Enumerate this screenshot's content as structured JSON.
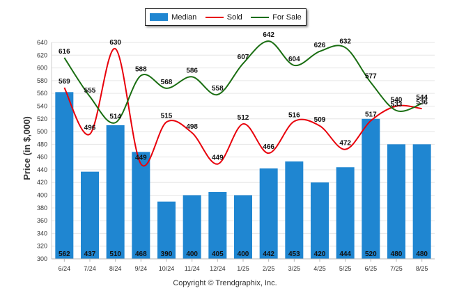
{
  "chart_data": {
    "type": "bar",
    "categories": [
      "6/24",
      "7/24",
      "8/24",
      "9/24",
      "10/24",
      "11/24",
      "12/24",
      "1/25",
      "2/25",
      "3/25",
      "4/25",
      "5/25",
      "6/25",
      "7/25",
      "8/25"
    ],
    "series": [
      {
        "name": "Median",
        "type": "bar",
        "color": "#1f86d1",
        "values": [
          562,
          437,
          510,
          468,
          390,
          400,
          405,
          400,
          442,
          453,
          420,
          444,
          520,
          480,
          480
        ]
      },
      {
        "name": "Sold",
        "type": "line",
        "color": "#e8000b",
        "values": [
          569,
          496,
          630,
          449,
          515,
          498,
          449,
          512,
          466,
          516,
          509,
          472,
          517,
          540,
          536
        ]
      },
      {
        "name": "For Sale",
        "type": "line",
        "color": "#1a6e12",
        "values": [
          616,
          555,
          514,
          588,
          568,
          586,
          558,
          607,
          642,
          604,
          626,
          632,
          577,
          533,
          544
        ]
      }
    ],
    "ylabel": "Price (in $,000)",
    "xlabel": "",
    "ylim": [
      300,
      640
    ],
    "yticks": [
      300,
      320,
      340,
      360,
      380,
      400,
      420,
      440,
      460,
      480,
      500,
      520,
      540,
      560,
      580,
      600,
      620,
      640
    ],
    "grid": true,
    "legend": "top-center"
  },
  "copyright": "Copyright © Trendgraphix, Inc."
}
